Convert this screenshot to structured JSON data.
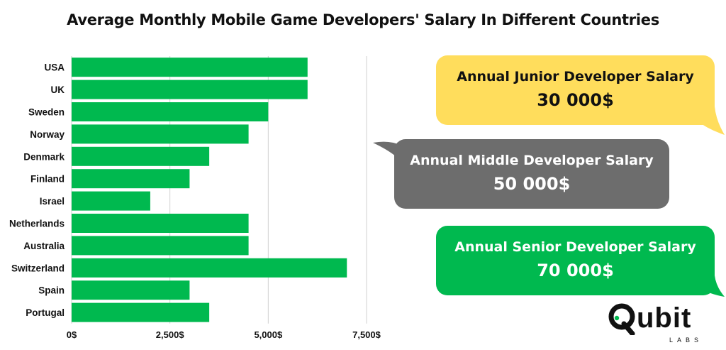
{
  "title": "Average Monthly Mobile Game Developers' Salary In Different Countries",
  "chart_data": {
    "type": "bar",
    "orientation": "horizontal",
    "categories": [
      "USA",
      "UK",
      "Sweden",
      "Norway",
      "Denmark",
      "Finland",
      "Israel",
      "Netherlands",
      "Australia",
      "Switzerland",
      "Spain",
      "Portugal"
    ],
    "values": [
      6000,
      6000,
      5000,
      4500,
      3500,
      3000,
      2000,
      4500,
      4500,
      7000,
      3000,
      3500
    ],
    "xlim": [
      0,
      7500
    ],
    "xticks": [
      0,
      2500,
      5000,
      7500
    ],
    "xtick_labels": [
      "0$",
      "2,500$",
      "5,000$",
      "7,500$"
    ],
    "grid": "vertical",
    "bar_color": "#00b94f"
  },
  "bubbles": [
    {
      "title": "Annual Junior Developer Salary",
      "value": "30 000$",
      "color": "#ffdd5c",
      "text_color": "#111111"
    },
    {
      "title": "Annual Middle Developer Salary",
      "value": "50 000$",
      "color": "#6d6d6d",
      "text_color": "#ffffff"
    },
    {
      "title": "Annual Senior Developer Salary",
      "value": "70 000$",
      "color": "#00b94f",
      "text_color": "#ffffff"
    }
  ],
  "logo": {
    "word": "ubit",
    "sub": "LABS",
    "accent": "#00b94f"
  }
}
